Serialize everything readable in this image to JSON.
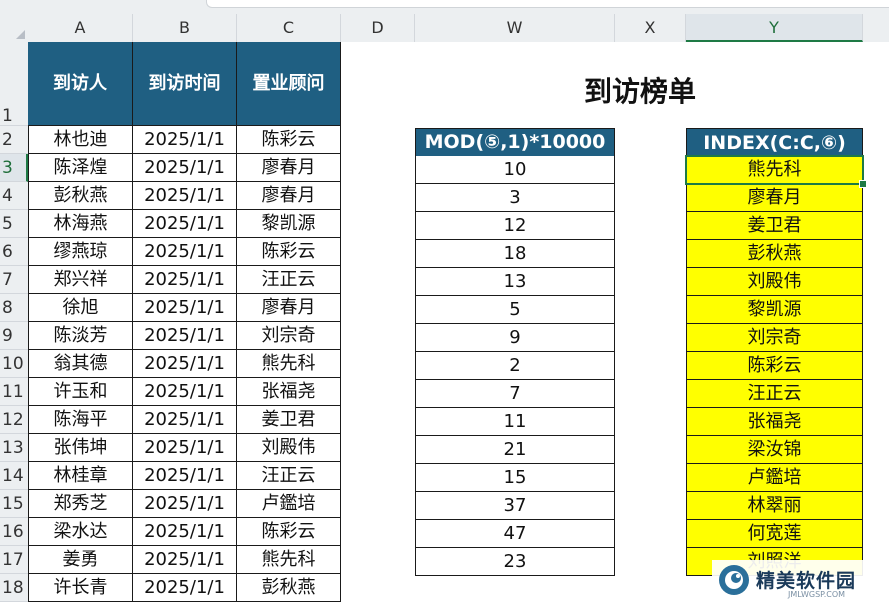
{
  "columns": [
    "A",
    "B",
    "C",
    "D",
    "W",
    "X",
    "Y"
  ],
  "row_numbers": [
    "1",
    "2",
    "3",
    "4",
    "5",
    "6",
    "7",
    "8",
    "9",
    "10",
    "11",
    "12",
    "13",
    "14",
    "15",
    "16",
    "17",
    "18"
  ],
  "selected_column": "Y",
  "selected_row": "3",
  "table": {
    "headers": [
      "到访人",
      "到访时间",
      "置业顾问"
    ],
    "rows": [
      [
        "林也迪",
        "2025/1/1",
        "陈彩云"
      ],
      [
        "陈泽煌",
        "2025/1/1",
        "廖春月"
      ],
      [
        "彭秋燕",
        "2025/1/1",
        "廖春月"
      ],
      [
        "林海燕",
        "2025/1/1",
        "黎凯源"
      ],
      [
        "缪燕琼",
        "2025/1/1",
        "陈彩云"
      ],
      [
        "郑兴祥",
        "2025/1/1",
        "汪正云"
      ],
      [
        "徐旭",
        "2025/1/1",
        "廖春月"
      ],
      [
        "陈淡芳",
        "2025/1/1",
        "刘宗奇"
      ],
      [
        "翁其德",
        "2025/1/1",
        "熊先科"
      ],
      [
        "许玉和",
        "2025/1/1",
        "张福尧"
      ],
      [
        "陈海平",
        "2025/1/1",
        "姜卫君"
      ],
      [
        "张伟坤",
        "2025/1/1",
        "刘殿伟"
      ],
      [
        "林桂章",
        "2025/1/1",
        "汪正云"
      ],
      [
        "郑秀芝",
        "2025/1/1",
        "卢鑑培"
      ],
      [
        "梁水达",
        "2025/1/1",
        "陈彩云"
      ],
      [
        "姜勇",
        "2025/1/1",
        "熊先科"
      ],
      [
        "许长青",
        "2025/1/1",
        "彭秋燕"
      ]
    ]
  },
  "title": "到访榜单",
  "mod_column": {
    "header": "MOD(⑤,1)*10000",
    "values": [
      "10",
      "3",
      "12",
      "18",
      "13",
      "5",
      "9",
      "2",
      "7",
      "11",
      "21",
      "15",
      "37",
      "47",
      "23"
    ]
  },
  "index_column": {
    "header": "INDEX(C:C,⑥)",
    "values": [
      "熊先科",
      "廖春月",
      "姜卫君",
      "彭秋燕",
      "刘殿伟",
      "黎凯源",
      "刘宗奇",
      "陈彩云",
      "汪正云",
      "张福尧",
      "梁汝锦",
      "卢鑑培",
      "林翠丽",
      "何宽莲",
      "刘照洋"
    ]
  },
  "watermark": {
    "text": "精美软件园",
    "sub": "JMLWGSP.COM",
    "logo_icon": "swirl-logo-icon"
  },
  "colors": {
    "header_fill": "#1f5f82",
    "highlight_fill": "#ffff00",
    "selection": "#1e7a45"
  }
}
